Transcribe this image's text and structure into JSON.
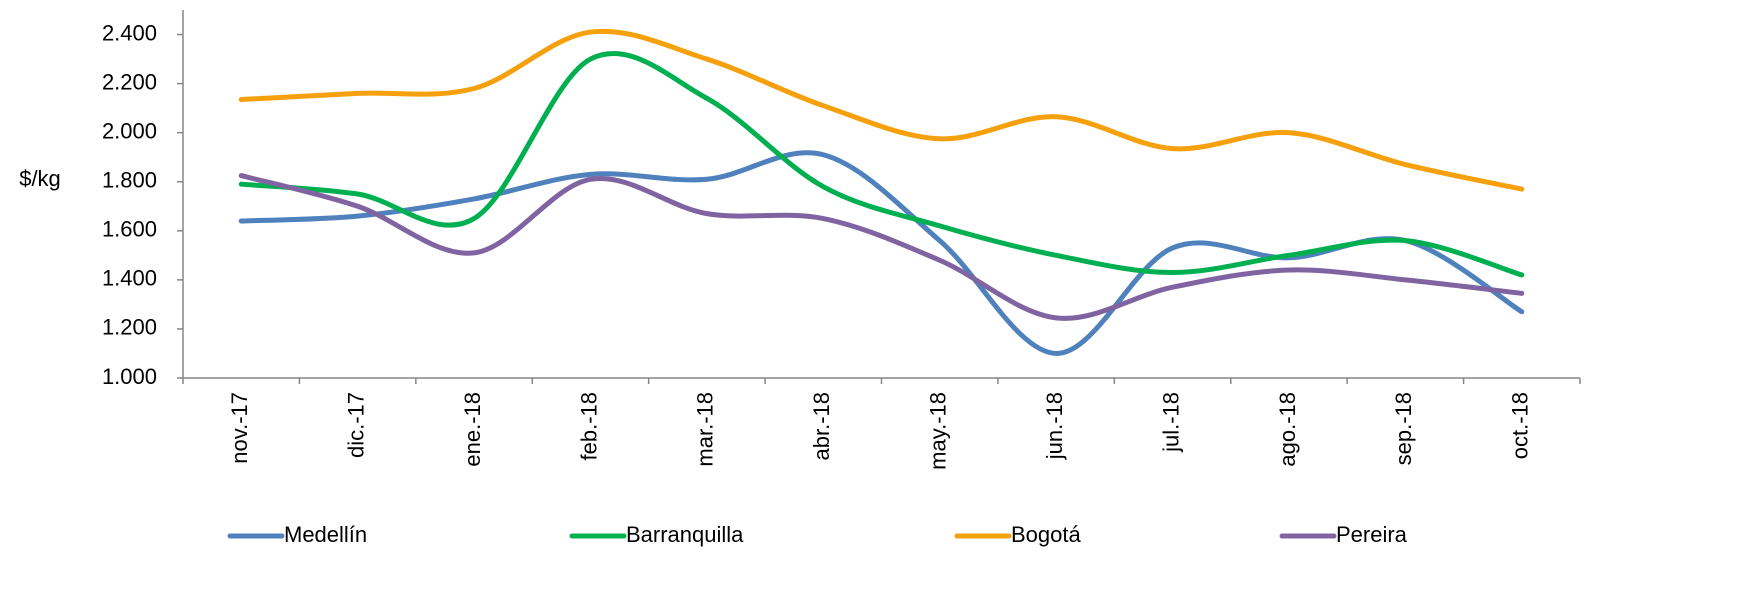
{
  "chart_data": {
    "type": "line",
    "y_axis_label": "$/kg",
    "categories": [
      "nov.-17",
      "dic.-17",
      "ene.-18",
      "feb.-18",
      "mar.-18",
      "abr.-18",
      "may.-18",
      "jun.-18",
      "jul.-18",
      "ago.-18",
      "sep.-18",
      "oct.-18"
    ],
    "series": [
      {
        "name": "Medellín",
        "color": "#4f81bd",
        "values": [
          1640,
          1660,
          1730,
          1830,
          1810,
          1910,
          1560,
          1100,
          1530,
          1490,
          1560,
          1270
        ]
      },
      {
        "name": "Barranquilla",
        "color": "#00b050",
        "values": [
          1790,
          1750,
          1650,
          2300,
          2140,
          1780,
          1620,
          1500,
          1430,
          1500,
          1560,
          1420
        ]
      },
      {
        "name": "Bogotá",
        "color": "#f5a00c",
        "values": [
          2135,
          2160,
          2180,
          2410,
          2300,
          2110,
          1975,
          2065,
          1935,
          2000,
          1870,
          1770
        ]
      },
      {
        "name": "Pereira",
        "color": "#8064a2",
        "values": [
          1825,
          1700,
          1510,
          1810,
          1670,
          1650,
          1480,
          1245,
          1370,
          1440,
          1400,
          1345
        ]
      }
    ],
    "ylim": [
      1000,
      2500
    ],
    "yticks": [
      {
        "value": 1000,
        "label": "1.000"
      },
      {
        "value": 1200,
        "label": "1.200"
      },
      {
        "value": 1400,
        "label": "1.400"
      },
      {
        "value": 1600,
        "label": "1.600"
      },
      {
        "value": 1800,
        "label": "1.800"
      },
      {
        "value": 2000,
        "label": "2.000"
      },
      {
        "value": 2200,
        "label": "2.200"
      },
      {
        "value": 2400,
        "label": "2.400"
      }
    ],
    "smooth": true,
    "legend": "bottom"
  }
}
